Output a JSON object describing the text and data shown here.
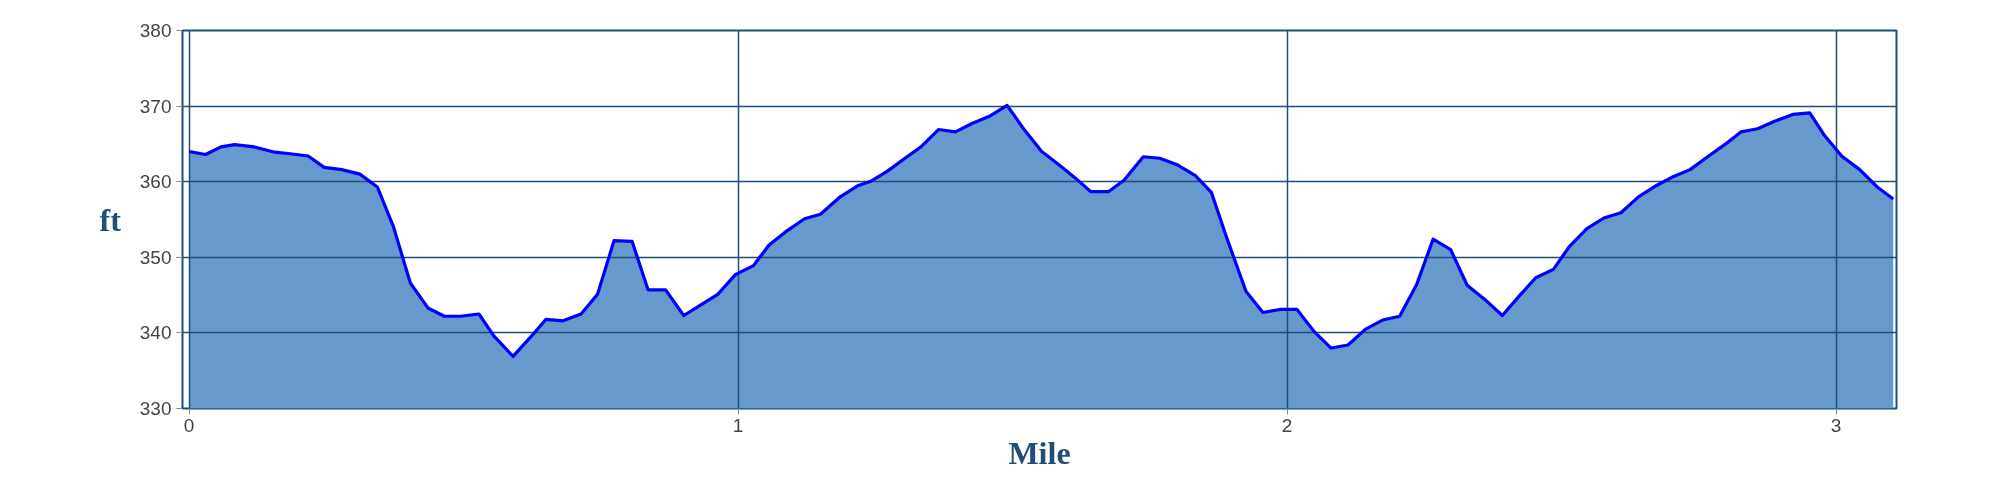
{
  "chart_data": {
    "type": "area",
    "xlabel": "Mile",
    "ylabel": "ft",
    "xlim": [
      -0.012,
      3.11
    ],
    "xticks": [
      0,
      1,
      2,
      3
    ],
    "ylim": [
      330,
      380
    ],
    "yticks": [
      330,
      340,
      350,
      360,
      370,
      380
    ],
    "grid": true,
    "series": [
      {
        "color": "#6699cc",
        "x": [
          0,
          0.03,
          0.058,
          0.083,
          0.119,
          0.156,
          0.184,
          0.217,
          0.246,
          0.278,
          0.311,
          0.343,
          0.372,
          0.403,
          0.435,
          0.465,
          0.494,
          0.528,
          0.555,
          0.59,
          0.624,
          0.65,
          0.681,
          0.714,
          0.744,
          0.774,
          0.807,
          0.836,
          0.868,
          0.901,
          0.93,
          0.963,
          0.995,
          1.028,
          1.056,
          1.089,
          1.121,
          1.15,
          1.186,
          1.219,
          1.243,
          1.272,
          1.304,
          1.333,
          1.365,
          1.396,
          1.426,
          1.459,
          1.49,
          1.52,
          1.553,
          1.585,
          1.614,
          1.642,
          1.675,
          1.703,
          1.738,
          1.768,
          1.801,
          1.833,
          1.862,
          1.89,
          1.925,
          1.956,
          1.987,
          2.018,
          2.049,
          2.08,
          2.111,
          2.143,
          2.174,
          2.205,
          2.236,
          2.266,
          2.298,
          2.328,
          2.359,
          2.392,
          2.423,
          2.453,
          2.485,
          2.514,
          2.546,
          2.577,
          2.608,
          2.64,
          2.673,
          2.704,
          2.734,
          2.766,
          2.797,
          2.827,
          2.857,
          2.888,
          2.921,
          2.952,
          2.979,
          3.01,
          3.043,
          3.075,
          3.104
        ],
        "values": [
          364.0,
          363.6,
          364.6,
          364.9,
          364.6,
          363.9,
          363.7,
          363.4,
          361.9,
          361.6,
          361.0,
          359.3,
          354.1,
          346.6,
          343.3,
          342.2,
          342.2,
          342.5,
          339.6,
          336.9,
          339.6,
          341.8,
          341.6,
          342.5,
          345.1,
          352.2,
          352.1,
          345.7,
          345.7,
          342.3,
          343.6,
          345.1,
          347.7,
          348.9,
          351.6,
          353.5,
          355.1,
          355.7,
          358.0,
          359.5,
          360.1,
          361.4,
          363.1,
          364.6,
          366.9,
          366.6,
          367.7,
          368.7,
          370.1,
          367.0,
          364.0,
          362.2,
          360.5,
          358.7,
          358.7,
          360.2,
          363.3,
          363.1,
          362.2,
          360.8,
          358.6,
          352.6,
          345.5,
          342.7,
          343.1,
          343.1,
          340.2,
          338.0,
          338.4,
          340.5,
          341.7,
          342.2,
          346.4,
          352.4,
          351.0,
          346.3,
          344.5,
          342.3,
          344.9,
          347.3,
          348.4,
          351.4,
          353.8,
          355.2,
          355.9,
          358.0,
          359.5,
          360.7,
          361.6,
          363.3,
          364.9,
          366.6,
          367.0,
          368.0,
          368.9,
          369.1,
          366.1,
          363.4,
          361.6,
          359.3,
          357.7
        ]
      }
    ]
  }
}
